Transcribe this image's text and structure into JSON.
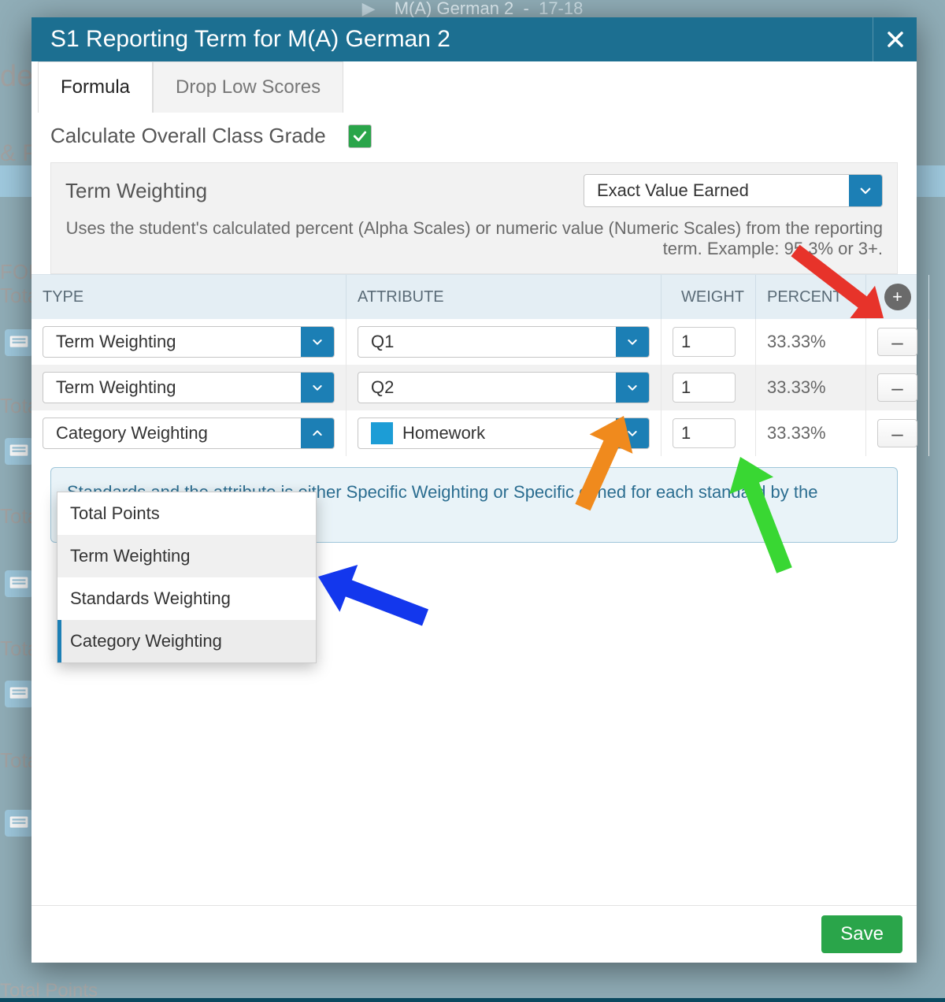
{
  "background": {
    "top_bar_course": "M(A) German 2",
    "top_bar_term": "17-18",
    "left_fragments": {
      "de": "de",
      "amp_p": "& P",
      "for": "FOR",
      "total_points_labels": [
        "Tota",
        "Tota",
        "Tota",
        "Tota",
        "Tota"
      ],
      "footer_total": "Total Points"
    }
  },
  "modal": {
    "title": "S1 Reporting Term for M(A) German 2",
    "tabs": {
      "formula": "Formula",
      "drop_low": "Drop Low Scores"
    },
    "calc_label": "Calculate Overall Class Grade",
    "calc_checked": true,
    "term_weighting": {
      "label": "Term Weighting",
      "selected": "Exact Value Earned",
      "help": "Uses the student's calculated percent (Alpha Scales) or numeric value (Numeric Scales) from the reporting term. Example: 95.3% or 3+."
    },
    "table": {
      "headers": {
        "type": "TYPE",
        "attribute": "ATTRIBUTE",
        "weight": "WEIGHT",
        "percent": "PERCENT"
      },
      "rows": [
        {
          "type": "Term Weighting",
          "attribute": "Q1",
          "has_swatch": false,
          "weight": "1",
          "percent": "33.33%"
        },
        {
          "type": "Term Weighting",
          "attribute": "Q2",
          "has_swatch": false,
          "weight": "1",
          "percent": "33.33%"
        },
        {
          "type": "Category Weighting",
          "attribute": "Homework",
          "has_swatch": true,
          "weight": "1",
          "percent": "33.33%"
        }
      ]
    },
    "dropdown_options": [
      "Total Points",
      "Term Weighting",
      "Standards Weighting",
      "Category Weighting"
    ],
    "dropdown_selected": "Category Weighting",
    "dropdown_hover": "Term Weighting",
    "info_note": "Standards and the attribute is either Specific Weighting or Specific efined for each standard by the administrator at the course level.",
    "save_label": "Save"
  },
  "arrows": {
    "red": {
      "color": "#e7332a",
      "from": [
        1010,
        318
      ],
      "to": [
        1122,
        404
      ],
      "head": 26
    },
    "orange": {
      "color": "#f08a1d",
      "from": [
        740,
        644
      ],
      "to": [
        792,
        528
      ],
      "head": 30
    },
    "green": {
      "color": "#39d733",
      "from": [
        996,
        724
      ],
      "to": [
        940,
        580
      ],
      "head": 30
    },
    "blue": {
      "color": "#1337ed",
      "from": [
        540,
        784
      ],
      "to": [
        404,
        732
      ],
      "head": 32
    }
  },
  "colors": {
    "header_bg": "#1c6f91",
    "accent_blue": "#1c7fb5",
    "check_green": "#2aa54a",
    "table_head_bg": "#e4eef4",
    "info_border": "#9fc6da",
    "info_bg": "#e9f3f8",
    "swatch": "#1c9dd6"
  }
}
